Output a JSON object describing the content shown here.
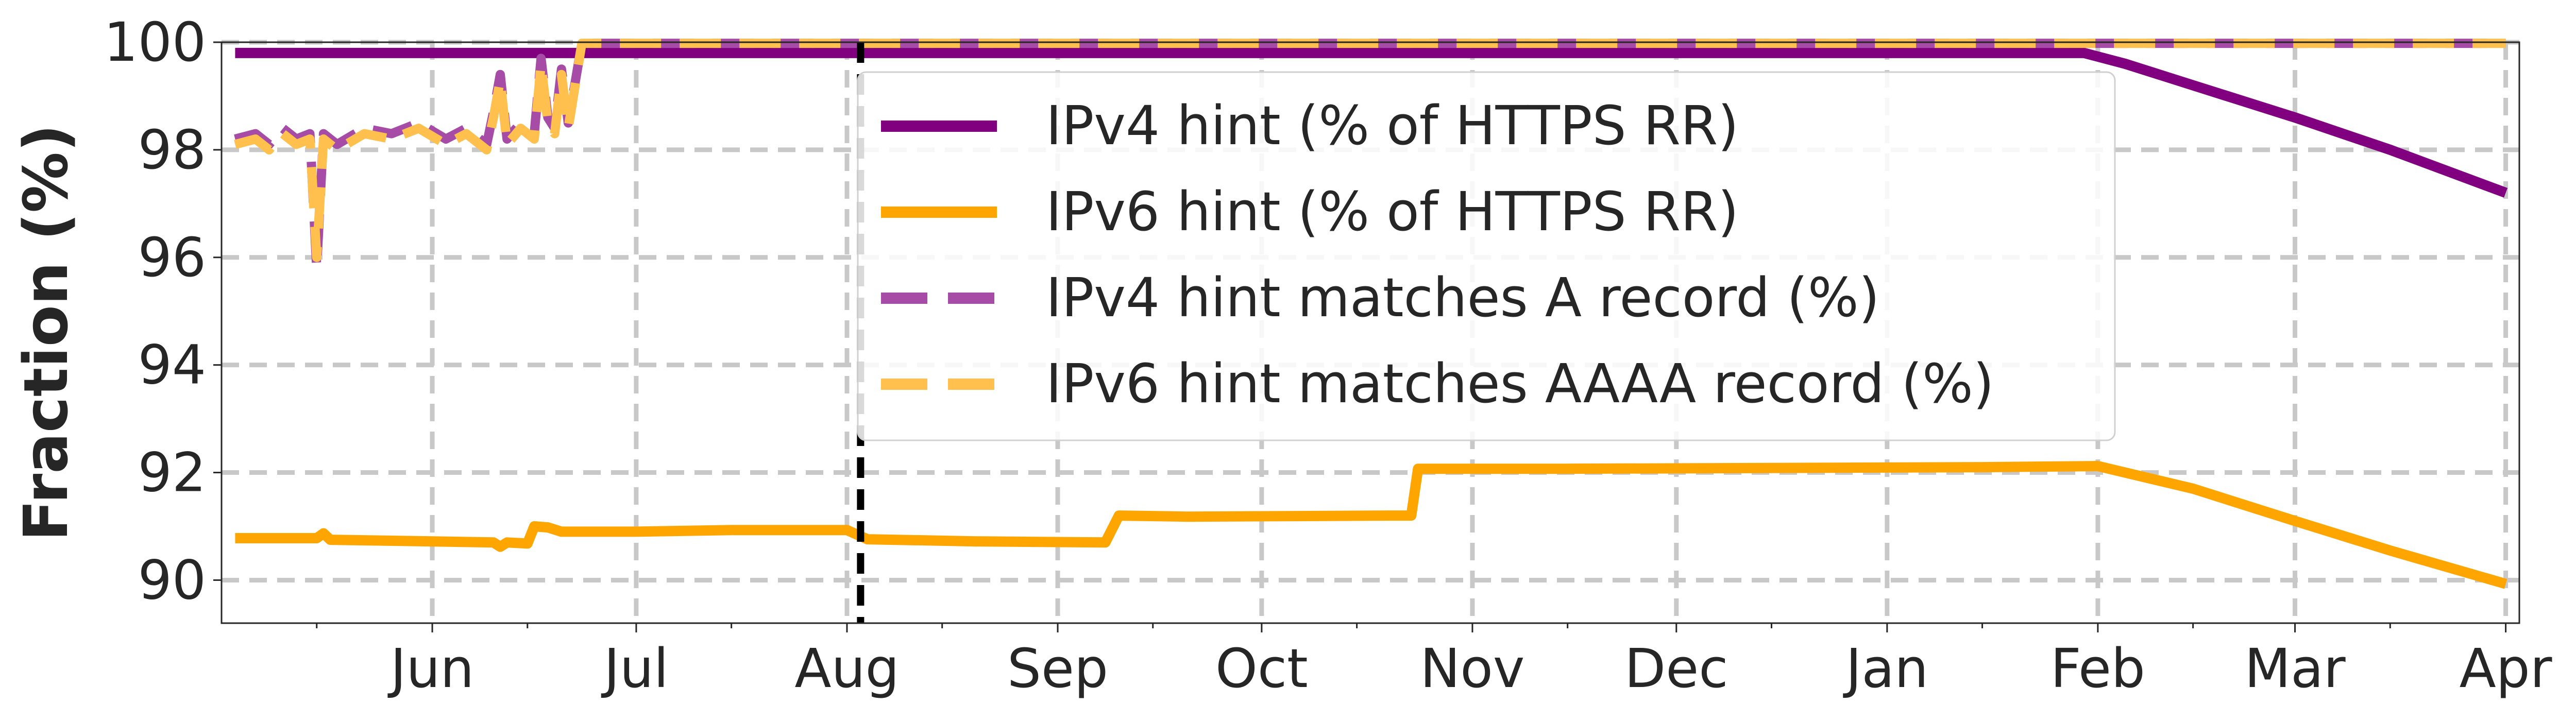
{
  "chart_data": {
    "type": "line",
    "ylabel": "Fraction (%)",
    "xlabel": "",
    "title": "",
    "ylim": [
      89.2,
      100
    ],
    "xlim": [
      "2023-05-01",
      "2024-04-03"
    ],
    "yticks": [
      90,
      92,
      94,
      96,
      98,
      100
    ],
    "xticks": [
      {
        "date": "2023-06-01",
        "label": "Jun"
      },
      {
        "date": "2023-07-01",
        "label": "Jul"
      },
      {
        "date": "2023-08-01",
        "label": "Aug"
      },
      {
        "date": "2023-09-01",
        "label": "Sep"
      },
      {
        "date": "2023-10-01",
        "label": "Oct"
      },
      {
        "date": "2023-11-01",
        "label": "Nov"
      },
      {
        "date": "2023-12-01",
        "label": "Dec"
      },
      {
        "date": "2024-01-01",
        "label": "Jan"
      },
      {
        "date": "2024-02-01",
        "label": "Feb"
      },
      {
        "date": "2024-03-01",
        "label": "Mar"
      },
      {
        "date": "2024-04-01",
        "label": "Apr"
      }
    ],
    "grid": true,
    "legend_position": "top-center",
    "vertical_marker": {
      "date": "2023-08-03",
      "style": "dashed",
      "color": "#000000"
    },
    "series": [
      {
        "name": "IPv4 hint (% of HTTPS RR)",
        "color": "#800080",
        "style": "solid",
        "points": [
          [
            "2023-05-03",
            99.8
          ],
          [
            "2024-01-30",
            99.8
          ],
          [
            "2024-02-05",
            99.6
          ],
          [
            "2024-02-15",
            99.2
          ],
          [
            "2024-03-01",
            98.6
          ],
          [
            "2024-03-15",
            98.0
          ],
          [
            "2024-04-01",
            97.2
          ]
        ]
      },
      {
        "name": "IPv6 hint (% of HTTPS RR)",
        "color": "#FFA500",
        "style": "solid",
        "points": [
          [
            "2023-05-03",
            90.78
          ],
          [
            "2023-05-15",
            90.78
          ],
          [
            "2023-05-16",
            90.87
          ],
          [
            "2023-05-17",
            90.75
          ],
          [
            "2023-06-01",
            90.72
          ],
          [
            "2023-06-10",
            90.7
          ],
          [
            "2023-06-11",
            90.62
          ],
          [
            "2023-06-12",
            90.7
          ],
          [
            "2023-06-15",
            90.68
          ],
          [
            "2023-06-16",
            91.0
          ],
          [
            "2023-06-18",
            90.98
          ],
          [
            "2023-06-20",
            90.9
          ],
          [
            "2023-07-01",
            90.9
          ],
          [
            "2023-07-15",
            90.93
          ],
          [
            "2023-08-01",
            90.93
          ],
          [
            "2023-08-04",
            90.76
          ],
          [
            "2023-08-20",
            90.72
          ],
          [
            "2023-09-08",
            90.7
          ],
          [
            "2023-09-10",
            91.2
          ],
          [
            "2023-09-20",
            91.18
          ],
          [
            "2023-10-20",
            91.2
          ],
          [
            "2023-10-23",
            91.2
          ],
          [
            "2023-10-24",
            92.07
          ],
          [
            "2023-11-15",
            92.07
          ],
          [
            "2024-01-15",
            92.1
          ],
          [
            "2024-02-01",
            92.12
          ],
          [
            "2024-02-15",
            91.7
          ],
          [
            "2024-03-01",
            91.1
          ],
          [
            "2024-03-15",
            90.55
          ],
          [
            "2024-04-01",
            89.93
          ]
        ]
      },
      {
        "name": "IPv4 hint matches A record (%)",
        "color": "#A64CA6",
        "style": "dashed",
        "points": [
          [
            "2023-05-03",
            98.2
          ],
          [
            "2023-05-06",
            98.3
          ],
          [
            "2023-05-08",
            98.1
          ],
          [
            "2023-05-10",
            98.4
          ],
          [
            "2023-05-12",
            98.2
          ],
          [
            "2023-05-14",
            98.3
          ],
          [
            "2023-05-15",
            95.8
          ],
          [
            "2023-05-16",
            98.3
          ],
          [
            "2023-05-18",
            98.1
          ],
          [
            "2023-05-22",
            98.4
          ],
          [
            "2023-05-26",
            98.3
          ],
          [
            "2023-05-30",
            98.5
          ],
          [
            "2023-06-03",
            98.2
          ],
          [
            "2023-06-06",
            98.4
          ],
          [
            "2023-06-09",
            98.1
          ],
          [
            "2023-06-10",
            98.7
          ],
          [
            "2023-06-11",
            99.4
          ],
          [
            "2023-06-12",
            98.2
          ],
          [
            "2023-06-14",
            98.5
          ],
          [
            "2023-06-16",
            98.3
          ],
          [
            "2023-06-17",
            99.7
          ],
          [
            "2023-06-18",
            98.6
          ],
          [
            "2023-06-19",
            98.4
          ],
          [
            "2023-06-20",
            99.5
          ],
          [
            "2023-06-21",
            98.5
          ],
          [
            "2023-06-23",
            99.98
          ],
          [
            "2024-04-01",
            99.98
          ]
        ]
      },
      {
        "name": "IPv6 hint matches AAAA record (%)",
        "color": "#FFC04D",
        "style": "dashed",
        "points": [
          [
            "2023-05-03",
            98.1
          ],
          [
            "2023-05-06",
            98.2
          ],
          [
            "2023-05-08",
            98.0
          ],
          [
            "2023-05-10",
            98.3
          ],
          [
            "2023-05-12",
            98.1
          ],
          [
            "2023-05-14",
            98.2
          ],
          [
            "2023-05-15",
            96.0
          ],
          [
            "2023-05-16",
            98.2
          ],
          [
            "2023-05-18",
            98.0
          ],
          [
            "2023-05-22",
            98.3
          ],
          [
            "2023-05-26",
            98.2
          ],
          [
            "2023-05-30",
            98.4
          ],
          [
            "2023-06-03",
            98.1
          ],
          [
            "2023-06-06",
            98.3
          ],
          [
            "2023-06-09",
            98.0
          ],
          [
            "2023-06-10",
            98.6
          ],
          [
            "2023-06-11",
            99.3
          ],
          [
            "2023-06-12",
            98.1
          ],
          [
            "2023-06-14",
            98.4
          ],
          [
            "2023-06-16",
            98.2
          ],
          [
            "2023-06-17",
            99.6
          ],
          [
            "2023-06-18",
            98.5
          ],
          [
            "2023-06-19",
            98.3
          ],
          [
            "2023-06-20",
            99.4
          ],
          [
            "2023-06-21",
            98.4
          ],
          [
            "2023-06-23",
            99.98
          ],
          [
            "2024-04-01",
            99.98
          ]
        ]
      }
    ]
  }
}
